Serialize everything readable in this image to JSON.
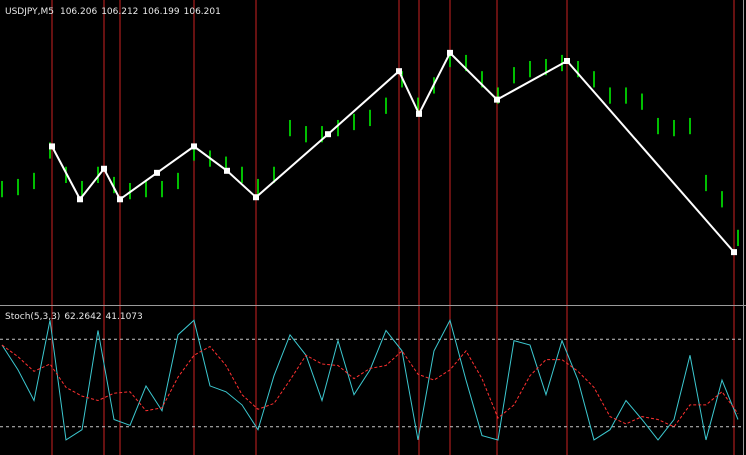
{
  "chart_data": [
    {
      "type": "hilo",
      "title": "USDJPY,M5",
      "quote": [
        106.206,
        106.212,
        106.199,
        106.201
      ],
      "color": "#00ff00",
      "xlim": [
        -0.5,
        186
      ],
      "ylim": [
        106.17,
        106.32
      ],
      "x": [
        0,
        4,
        8,
        12,
        16,
        20,
        24,
        28,
        32,
        36,
        40,
        44,
        48,
        52,
        56,
        60,
        64,
        68,
        72,
        76,
        80,
        84,
        88,
        92,
        96,
        100,
        104,
        108,
        112,
        116,
        120,
        124,
        128,
        132,
        136,
        140,
        144,
        148,
        152,
        156,
        160,
        164,
        168,
        172,
        176,
        180,
        184
      ],
      "high": [
        106.231,
        106.232,
        106.235,
        106.25,
        106.238,
        106.231,
        106.238,
        106.233,
        106.23,
        106.231,
        106.231,
        106.235,
        106.249,
        106.246,
        106.243,
        106.238,
        106.232,
        106.238,
        106.261,
        106.258,
        106.258,
        106.261,
        106.264,
        106.266,
        106.272,
        106.285,
        106.272,
        106.282,
        106.295,
        106.293,
        106.285,
        106.277,
        106.287,
        106.29,
        106.291,
        106.293,
        106.29,
        106.285,
        106.277,
        106.277,
        106.274,
        106.262,
        106.261,
        106.262,
        106.234,
        106.226,
        106.207
      ],
      "low": [
        106.223,
        106.224,
        106.227,
        106.242,
        106.23,
        106.223,
        106.23,
        106.225,
        106.222,
        106.223,
        106.223,
        106.227,
        106.241,
        106.238,
        106.235,
        106.23,
        106.224,
        106.23,
        106.253,
        106.25,
        106.25,
        106.253,
        106.256,
        106.258,
        106.264,
        106.277,
        106.264,
        106.274,
        106.287,
        106.285,
        106.277,
        106.269,
        106.279,
        106.282,
        106.283,
        106.285,
        106.282,
        106.277,
        106.269,
        106.269,
        106.266,
        106.254,
        106.253,
        106.254,
        106.226,
        106.218,
        106.199
      ],
      "zigzag": {
        "color": "#ffffff",
        "x": [
          12.5,
          19.5,
          25.5,
          29.5,
          38.75,
          48,
          56.25,
          63.5,
          81.5,
          99.25,
          104.25,
          112,
          123.75,
          141.25,
          183
        ],
        "y": [
          106.248,
          106.222,
          106.237,
          106.222,
          106.235,
          106.248,
          106.236,
          106.223,
          106.254,
          106.285,
          106.264,
          106.294,
          106.271,
          106.29,
          106.196
        ]
      },
      "vlines": {
        "color": "#cc2222",
        "x": [
          12.5,
          25.5,
          29.5,
          48,
          63.5,
          99.25,
          104.25,
          112,
          123.75,
          141.25,
          183
        ]
      }
    },
    {
      "type": "line",
      "title": "Stoch(5,3,3)",
      "readings": [
        62.2642,
        41.1073
      ],
      "xlim": [
        -0.5,
        186
      ],
      "ylim": [
        0,
        100
      ],
      "levels": [
        20,
        80
      ],
      "x": [
        0,
        4,
        8,
        12,
        16,
        20,
        24,
        28,
        32,
        36,
        40,
        44,
        48,
        52,
        56,
        60,
        64,
        68,
        72,
        76,
        80,
        84,
        88,
        92,
        96,
        100,
        104,
        108,
        112,
        116,
        120,
        124,
        128,
        132,
        136,
        140,
        144,
        148,
        152,
        156,
        160,
        164,
        168,
        172,
        176,
        180,
        184
      ],
      "series": [
        {
          "color": "#3cc8d0",
          "values": [
            76,
            59,
            38,
            93,
            11,
            18,
            86,
            25,
            21,
            48,
            31,
            83,
            93,
            48,
            44,
            35,
            18,
            55,
            83,
            69,
            38,
            79,
            42,
            59,
            86,
            72,
            11,
            72,
            93,
            52,
            14,
            11,
            79,
            76,
            42,
            79,
            52,
            11,
            18,
            38,
            25,
            11,
            25,
            69,
            11,
            52,
            25
          ]
        },
        {
          "color": "#ff3030",
          "dashed": true,
          "values": [
            76,
            68,
            58,
            63,
            47,
            41,
            38,
            43,
            44,
            31,
            33,
            54,
            69,
            75,
            62,
            42,
            32,
            36,
            52,
            69,
            63,
            62,
            53,
            60,
            62,
            72,
            56,
            52,
            59,
            72,
            53,
            26,
            35,
            55,
            66,
            66,
            58,
            47,
            27,
            22,
            27,
            25,
            20,
            35,
            35,
            44,
            29
          ]
        }
      ]
    }
  ]
}
